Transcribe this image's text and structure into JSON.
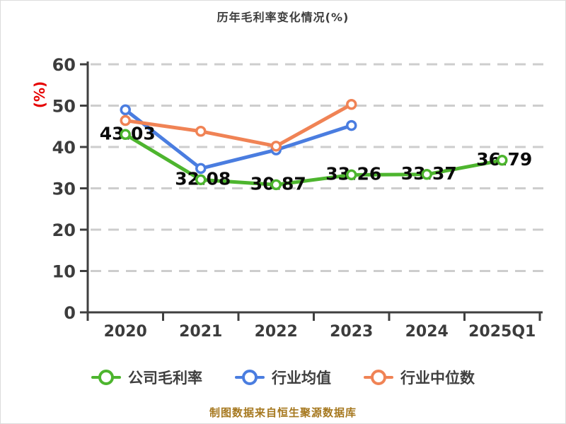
{
  "title": "历年毛利率变化情况(%)",
  "caption": "制图数据来自恒生聚源数据库",
  "chart_data": {
    "type": "line",
    "title": "历年毛利率变化情况(%)",
    "ylabel": "(%)",
    "ylabel_color": "#e60000",
    "categories": [
      "2020",
      "2021",
      "2022",
      "2023",
      "2024",
      "2025Q1"
    ],
    "ylim": [
      0,
      60
    ],
    "yticks": [
      0,
      10,
      20,
      30,
      40,
      50,
      60
    ],
    "grid": "horizontal-dashed",
    "legend_position": "bottom",
    "series": [
      {
        "name": "公司毛利率",
        "color": "#4db52e",
        "values": [
          43.03,
          32.08,
          30.87,
          33.26,
          33.37,
          36.79
        ],
        "labels": [
          "43.03",
          "32.08",
          "30.87",
          "33.26",
          "33.37",
          "36.79"
        ],
        "show_labels": true
      },
      {
        "name": "行业均值",
        "color": "#4a7de0",
        "values": [
          49.0,
          34.8,
          39.3,
          45.2
        ],
        "show_labels": false
      },
      {
        "name": "行业中位数",
        "color": "#f08355",
        "values": [
          46.4,
          43.8,
          40.2,
          50.3
        ],
        "show_labels": false
      }
    ],
    "colors": {
      "axis": "#3f3f3f",
      "grid": "#cdcdcd",
      "tick_text": "#3c3c3c",
      "data_label": "#0a0a0a",
      "title_text": "#3c3c3c",
      "caption_text": "#a6781f"
    }
  }
}
